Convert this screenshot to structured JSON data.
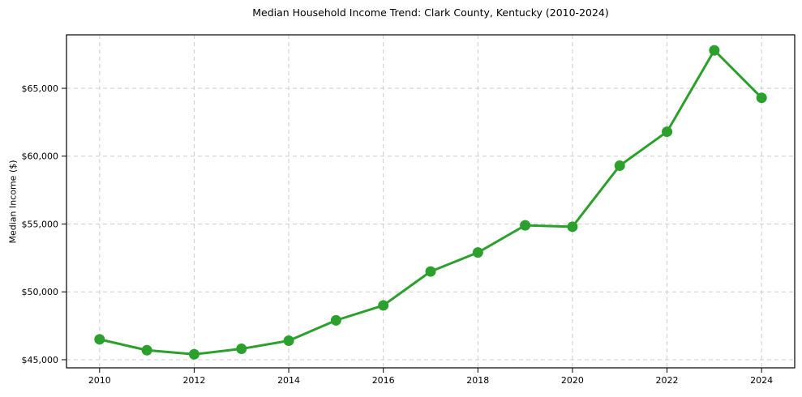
{
  "chart_data": {
    "type": "line",
    "title": "Median Household Income Trend: Clark County, Kentucky (2010-2024)",
    "xlabel": "",
    "ylabel": "Median Income ($)",
    "x": [
      2010,
      2011,
      2012,
      2013,
      2014,
      2015,
      2016,
      2017,
      2018,
      2019,
      2020,
      2021,
      2022,
      2023,
      2024
    ],
    "series": [
      {
        "name": "Median Household Income",
        "values": [
          46500,
          45700,
          45400,
          45800,
          46400,
          47900,
          49000,
          51500,
          52900,
          54900,
          54800,
          59300,
          61800,
          67800,
          64300
        ]
      }
    ],
    "xticks": [
      2010,
      2012,
      2014,
      2016,
      2018,
      2020,
      2022,
      2024
    ],
    "xtick_labels": [
      "2010",
      "2012",
      "2014",
      "2016",
      "2018",
      "2020",
      "2022",
      "2024"
    ],
    "yticks": [
      45000,
      50000,
      55000,
      60000,
      65000
    ],
    "ytick_labels": [
      "$45,000",
      "$50,000",
      "$55,000",
      "$60,000",
      "$65,000"
    ],
    "xlim": [
      2009.3,
      2024.7
    ],
    "ylim": [
      44400,
      68940
    ],
    "grid": true,
    "grid_style": "dashed",
    "legend": false,
    "line_color": "#2ca02c",
    "marker": "circle",
    "grid_color": "#cdcdcd",
    "spine_color": "#000000",
    "background": "#ffffff"
  }
}
